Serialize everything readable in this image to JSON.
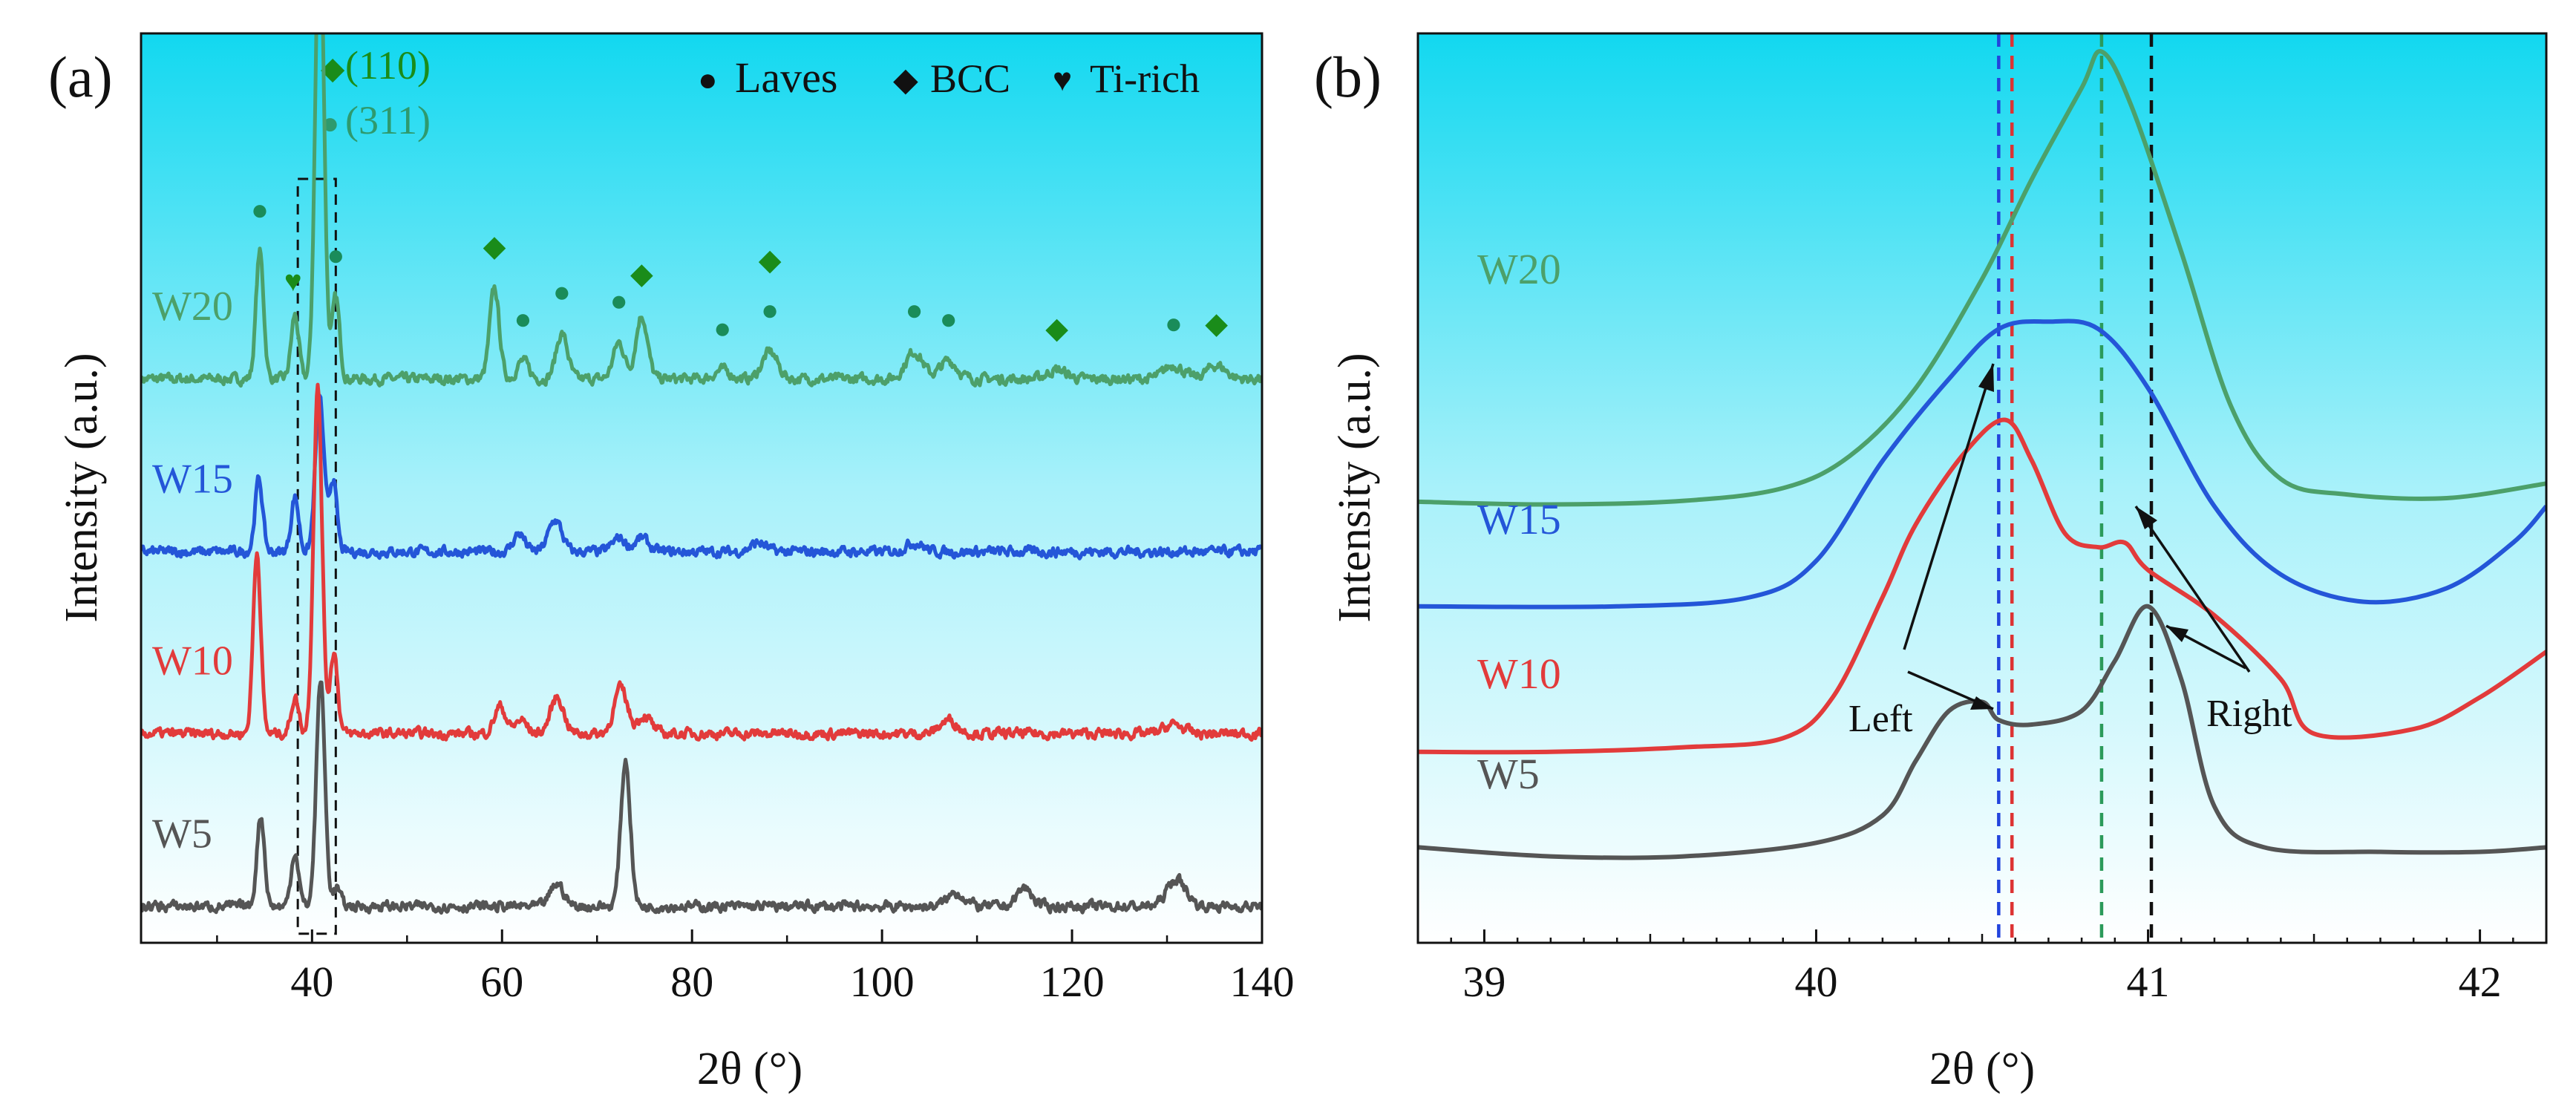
{
  "chart_data": [
    {
      "panel": "(a)",
      "type": "line",
      "xlabel": "2θ (°)",
      "ylabel": "Intensity (a.u.)",
      "xlim": [
        22,
        140
      ],
      "ylim": [
        0,
        100
      ],
      "xticks": [
        40,
        60,
        80,
        100,
        120,
        140
      ],
      "grid": false,
      "background": {
        "top": "#12d8f0",
        "bottom": "#ffffff"
      },
      "legend": {
        "position": "top-right",
        "entries": [
          {
            "symbol": "●",
            "label": "Laves",
            "color": "#111111"
          },
          {
            "symbol": "◆",
            "label": "BCC",
            "color": "#111111"
          },
          {
            "symbol": "♥",
            "label": "Ti-rich",
            "color": "#111111"
          }
        ]
      },
      "annotations": [
        {
          "symbol": "◆",
          "text": "(110)",
          "color": "#1a8c1a"
        },
        {
          "symbol": "●",
          "text": "(311)",
          "color": "#2e9a6e"
        }
      ],
      "dashed_box_x": [
        38.5,
        42.5
      ],
      "series": [
        {
          "name": "W20",
          "color": "#4ca06a",
          "baseline": 62,
          "peaks": [
            [
              34.5,
              14,
              0.4
            ],
            [
              38.2,
              7,
              0.4
            ],
            [
              40.8,
              52,
              0.45
            ],
            [
              42.5,
              9,
              0.4
            ],
            [
              59.2,
              10,
              0.5
            ],
            [
              62.2,
              2,
              0.6
            ],
            [
              66.3,
              5,
              0.6
            ],
            [
              72.3,
              4,
              0.6
            ],
            [
              74.7,
              7,
              0.6
            ],
            [
              83.2,
              1,
              0.8
            ],
            [
              88.2,
              3,
              0.8
            ],
            [
              103.4,
              3,
              0.9
            ],
            [
              107,
              2,
              0.9
            ],
            [
              118.4,
              1,
              1.0
            ],
            [
              130.7,
              1.5,
              1.0
            ],
            [
              135.2,
              1.5,
              1.0
            ]
          ],
          "markers": [
            {
              "x": 34.5,
              "symbol": "●",
              "color": "#1a8c5a"
            },
            {
              "x": 38.0,
              "symbol": "♥",
              "color": "#1a8c1a"
            },
            {
              "x": 42.5,
              "symbol": "●",
              "color": "#1a8c5a"
            },
            {
              "x": 59.2,
              "symbol": "◆",
              "color": "#1a8c1a"
            },
            {
              "x": 62.2,
              "symbol": "●",
              "color": "#1a8c5a"
            },
            {
              "x": 66.3,
              "symbol": "●",
              "color": "#1a8c5a"
            },
            {
              "x": 72.3,
              "symbol": "●",
              "color": "#1a8c5a"
            },
            {
              "x": 74.7,
              "symbol": "◆",
              "color": "#1a8c1a"
            },
            {
              "x": 83.2,
              "symbol": "●",
              "color": "#1a8c5a"
            },
            {
              "x": 88.2,
              "symbol": "●",
              "color": "#1a8c5a"
            },
            {
              "x": 88.2,
              "symbol": "◆",
              "color": "#1a8c1a"
            },
            {
              "x": 103.4,
              "symbol": "●",
              "color": "#1a8c5a"
            },
            {
              "x": 107.0,
              "symbol": "●",
              "color": "#1a8c5a"
            },
            {
              "x": 118.4,
              "symbol": "◆",
              "color": "#1a8c1a"
            },
            {
              "x": 130.7,
              "symbol": "●",
              "color": "#1a8c5a"
            },
            {
              "x": 135.2,
              "symbol": "◆",
              "color": "#1a8c1a"
            }
          ]
        },
        {
          "name": "W15",
          "color": "#2456d8",
          "baseline": 43,
          "peaks": [
            [
              34.4,
              8,
              0.4
            ],
            [
              38.2,
              6,
              0.4
            ],
            [
              40.8,
              17,
              0.45
            ],
            [
              42.2,
              8,
              0.4
            ],
            [
              61.8,
              2,
              0.6
            ],
            [
              65.6,
              3.5,
              0.7
            ],
            [
              72.3,
              1.5,
              0.7
            ],
            [
              74.7,
              1.5,
              0.7
            ],
            [
              87,
              1,
              0.8
            ],
            [
              103.4,
              1,
              0.9
            ]
          ],
          "markers": []
        },
        {
          "name": "W10",
          "color": "#e23b3b",
          "baseline": 23,
          "peaks": [
            [
              34.2,
              20,
              0.4
            ],
            [
              38.2,
              4,
              0.4
            ],
            [
              40.6,
              38,
              0.45
            ],
            [
              42.3,
              9,
              0.4
            ],
            [
              59.8,
              3,
              0.6
            ],
            [
              62,
              1.5,
              0.6
            ],
            [
              65.8,
              4,
              0.7
            ],
            [
              72.5,
              5,
              0.7
            ],
            [
              75,
              2,
              0.7
            ],
            [
              107,
              1.5,
              0.9
            ],
            [
              130.7,
              1,
              1.0
            ]
          ],
          "markers": []
        },
        {
          "name": "W5",
          "color": "#555555",
          "baseline": 4,
          "peaks": [
            [
              34.6,
              10,
              0.4
            ],
            [
              38.2,
              6,
              0.4
            ],
            [
              40.9,
              25,
              0.45
            ],
            [
              42.6,
              2,
              0.4
            ],
            [
              65.8,
              2.5,
              0.7
            ],
            [
              73,
              16,
              0.5
            ],
            [
              107.8,
              1.5,
              0.9
            ],
            [
              115,
              2,
              0.8
            ],
            [
              131,
              3,
              1.0
            ]
          ],
          "markers": []
        }
      ]
    },
    {
      "panel": "(b)",
      "type": "line",
      "xlabel": "2θ (°)",
      "ylabel": "Intensity (a.u.)",
      "xlim": [
        38.8,
        42.2
      ],
      "ylim": [
        0,
        100
      ],
      "xticks": [
        39,
        40,
        41,
        42
      ],
      "grid": false,
      "background": {
        "top": "#12d8f0",
        "bottom": "#ffffff"
      },
      "reference_lines": [
        {
          "x": 40.55,
          "color": "#2244dd"
        },
        {
          "x": 40.59,
          "color": "#dd3333"
        },
        {
          "x": 40.86,
          "color": "#2b9a5a"
        },
        {
          "x": 41.01,
          "color": "#111111"
        }
      ],
      "annotations": [
        {
          "text": "Left",
          "color": "#111111"
        },
        {
          "text": "Right",
          "color": "#111111"
        }
      ],
      "series": [
        {
          "name": "W20",
          "color": "#4ca06a",
          "points": [
            [
              38.8,
              48.5
            ],
            [
              39.2,
              48.2
            ],
            [
              39.6,
              48.6
            ],
            [
              39.9,
              50
            ],
            [
              40.1,
              53.5
            ],
            [
              40.3,
              61
            ],
            [
              40.5,
              73
            ],
            [
              40.65,
              84
            ],
            [
              40.8,
              94
            ],
            [
              40.86,
              98
            ],
            [
              40.95,
              92
            ],
            [
              41.1,
              76
            ],
            [
              41.25,
              59
            ],
            [
              41.4,
              51
            ],
            [
              41.6,
              49.3
            ],
            [
              41.9,
              48.9
            ],
            [
              42.2,
              50.5
            ]
          ]
        },
        {
          "name": "W15",
          "color": "#2456d8",
          "points": [
            [
              38.8,
              37
            ],
            [
              39.4,
              37
            ],
            [
              39.8,
              38
            ],
            [
              40.0,
              42
            ],
            [
              40.2,
              53
            ],
            [
              40.4,
              62
            ],
            [
              40.55,
              67.5
            ],
            [
              40.7,
              68.3
            ],
            [
              40.85,
              67.5
            ],
            [
              41.0,
              61
            ],
            [
              41.2,
              48
            ],
            [
              41.4,
              40.5
            ],
            [
              41.65,
              37.5
            ],
            [
              41.9,
              39
            ],
            [
              42.1,
              44
            ],
            [
              42.2,
              48
            ]
          ]
        },
        {
          "name": "W10",
          "color": "#e23b3b",
          "points": [
            [
              38.8,
              21
            ],
            [
              39.2,
              21
            ],
            [
              39.6,
              21.5
            ],
            [
              39.9,
              22.5
            ],
            [
              40.05,
              27
            ],
            [
              40.2,
              38
            ],
            [
              40.3,
              46
            ],
            [
              40.45,
              54
            ],
            [
              40.57,
              57.5
            ],
            [
              40.65,
              53
            ],
            [
              40.75,
              45
            ],
            [
              40.85,
              43.5
            ],
            [
              40.93,
              44
            ],
            [
              41.0,
              41
            ],
            [
              41.2,
              36
            ],
            [
              41.4,
              29
            ],
            [
              41.5,
              23
            ],
            [
              41.8,
              23.5
            ],
            [
              42.0,
              27
            ],
            [
              42.2,
              32
            ]
          ]
        },
        {
          "name": "W5",
          "color": "#555555",
          "points": [
            [
              38.8,
              10.5
            ],
            [
              39.2,
              9.5
            ],
            [
              39.6,
              9.5
            ],
            [
              40.0,
              11
            ],
            [
              40.2,
              14
            ],
            [
              40.3,
              20
            ],
            [
              40.4,
              25.5
            ],
            [
              40.5,
              26.5
            ],
            [
              40.55,
              24.5
            ],
            [
              40.65,
              24
            ],
            [
              40.8,
              25.5
            ],
            [
              40.9,
              31
            ],
            [
              41.0,
              37
            ],
            [
              41.1,
              29
            ],
            [
              41.2,
              15
            ],
            [
              41.35,
              10.5
            ],
            [
              41.7,
              10
            ],
            [
              42.0,
              10
            ],
            [
              42.2,
              10.5
            ]
          ]
        }
      ]
    }
  ]
}
